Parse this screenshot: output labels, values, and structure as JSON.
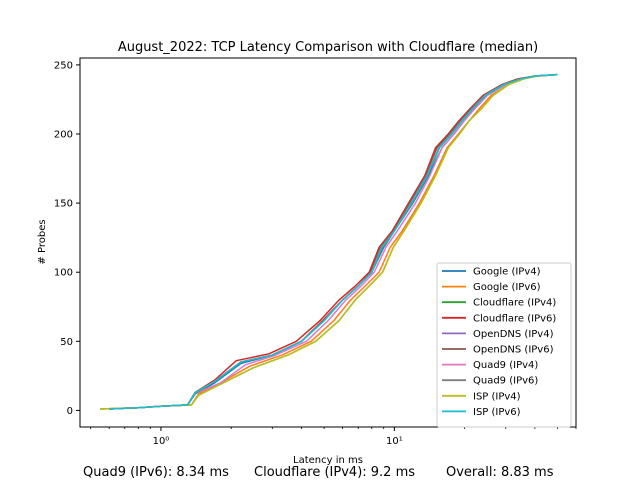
{
  "chart_data": {
    "type": "line",
    "title": "August_2022: TCP Latency Comparison with Cloudflare (median)",
    "xlabel": "Latency in ms",
    "ylabel": "# Probes",
    "xscale": "log",
    "xlim": [
      0.45,
      60
    ],
    "ylim": [
      -12,
      255
    ],
    "xticks": [
      {
        "value": 1,
        "label": "10⁰"
      },
      {
        "value": 10,
        "label": "10¹"
      }
    ],
    "yticks": [
      0,
      50,
      100,
      150,
      200,
      250
    ],
    "grid": false,
    "legend_position": "lower-right",
    "series": [
      {
        "name": "Google (IPv4)",
        "color": "#1f77b4",
        "points": [
          [
            0.6,
            1
          ],
          [
            0.8,
            2
          ],
          [
            1.0,
            3
          ],
          [
            1.3,
            4
          ],
          [
            1.4,
            12
          ],
          [
            1.7,
            20
          ],
          [
            2.2,
            34
          ],
          [
            3.0,
            40
          ],
          [
            4.0,
            50
          ],
          [
            5.0,
            65
          ],
          [
            6.0,
            80
          ],
          [
            7.0,
            90
          ],
          [
            8.0,
            100
          ],
          [
            9.0,
            118
          ],
          [
            10.0,
            130
          ],
          [
            12.0,
            150
          ],
          [
            14.0,
            170
          ],
          [
            16.0,
            190
          ],
          [
            18.0,
            200
          ],
          [
            20.0,
            210
          ],
          [
            22.0,
            218
          ],
          [
            25.0,
            228
          ],
          [
            30.0,
            236
          ],
          [
            35.0,
            240
          ],
          [
            40.0,
            242
          ],
          [
            50.0,
            243
          ]
        ]
      },
      {
        "name": "Google (IPv6)",
        "color": "#ff7f0e",
        "points": [
          [
            0.55,
            1
          ],
          [
            0.8,
            2
          ],
          [
            1.0,
            3
          ],
          [
            1.35,
            4
          ],
          [
            1.45,
            12
          ],
          [
            1.8,
            20
          ],
          [
            2.4,
            32
          ],
          [
            3.3,
            40
          ],
          [
            4.4,
            50
          ],
          [
            5.5,
            65
          ],
          [
            6.5,
            80
          ],
          [
            7.5,
            90
          ],
          [
            8.6,
            100
          ],
          [
            9.6,
            118
          ],
          [
            10.8,
            130
          ],
          [
            12.8,
            150
          ],
          [
            14.8,
            170
          ],
          [
            16.8,
            190
          ],
          [
            18.8,
            200
          ],
          [
            21.0,
            210
          ],
          [
            23.0,
            218
          ],
          [
            26.0,
            228
          ],
          [
            31.0,
            236
          ],
          [
            36.0,
            240
          ],
          [
            41.0,
            242
          ],
          [
            50.0,
            243
          ]
        ]
      },
      {
        "name": "Cloudflare (IPv4)",
        "color": "#2ca02c",
        "points": [
          [
            0.55,
            1
          ],
          [
            0.8,
            2
          ],
          [
            1.0,
            3
          ],
          [
            1.35,
            4
          ],
          [
            1.45,
            11
          ],
          [
            1.85,
            20
          ],
          [
            2.5,
            31
          ],
          [
            3.5,
            40
          ],
          [
            4.6,
            50
          ],
          [
            5.8,
            65
          ],
          [
            6.8,
            80
          ],
          [
            7.8,
            90
          ],
          [
            8.9,
            100
          ],
          [
            9.9,
            118
          ],
          [
            11.0,
            130
          ],
          [
            13.0,
            150
          ],
          [
            15.0,
            170
          ],
          [
            17.0,
            190
          ],
          [
            19.0,
            200
          ],
          [
            21.0,
            210
          ],
          [
            23.5,
            218
          ],
          [
            26.5,
            228
          ],
          [
            31.0,
            236
          ],
          [
            36.0,
            240
          ],
          [
            41.0,
            242
          ],
          [
            50.0,
            243
          ]
        ]
      },
      {
        "name": "Cloudflare (IPv6)",
        "color": "#d62728",
        "points": [
          [
            0.6,
            1
          ],
          [
            0.8,
            2
          ],
          [
            1.0,
            3
          ],
          [
            1.3,
            4
          ],
          [
            1.4,
            13
          ],
          [
            1.7,
            22
          ],
          [
            2.1,
            36
          ],
          [
            2.9,
            41
          ],
          [
            3.8,
            50
          ],
          [
            4.8,
            65
          ],
          [
            5.8,
            80
          ],
          [
            6.8,
            90
          ],
          [
            7.8,
            100
          ],
          [
            8.6,
            118
          ],
          [
            9.8,
            130
          ],
          [
            11.5,
            150
          ],
          [
            13.5,
            170
          ],
          [
            15.0,
            190
          ],
          [
            17.0,
            200
          ],
          [
            19.0,
            210
          ],
          [
            21.0,
            218
          ],
          [
            24.0,
            228
          ],
          [
            29.0,
            236
          ],
          [
            34.0,
            240
          ],
          [
            40.0,
            242
          ],
          [
            50.0,
            243
          ]
        ]
      },
      {
        "name": "OpenDNS (IPv4)",
        "color": "#9467bd",
        "points": [
          [
            0.6,
            1
          ],
          [
            0.8,
            2
          ],
          [
            1.0,
            3
          ],
          [
            1.3,
            4
          ],
          [
            1.4,
            12
          ],
          [
            1.7,
            21
          ],
          [
            2.2,
            35
          ],
          [
            3.0,
            40
          ],
          [
            4.0,
            50
          ],
          [
            5.0,
            66
          ],
          [
            6.0,
            80
          ],
          [
            7.0,
            90
          ],
          [
            8.0,
            100
          ],
          [
            8.8,
            118
          ],
          [
            10.0,
            130
          ],
          [
            11.8,
            150
          ],
          [
            13.8,
            170
          ],
          [
            15.5,
            190
          ],
          [
            17.5,
            200
          ],
          [
            19.5,
            210
          ],
          [
            21.5,
            218
          ],
          [
            24.5,
            228
          ],
          [
            29.5,
            236
          ],
          [
            35.0,
            240
          ],
          [
            40.0,
            242
          ],
          [
            50.0,
            243
          ]
        ]
      },
      {
        "name": "OpenDNS (IPv6)",
        "color": "#8c564b",
        "points": [
          [
            0.6,
            1
          ],
          [
            0.8,
            2
          ],
          [
            1.0,
            3
          ],
          [
            1.3,
            4
          ],
          [
            1.4,
            12
          ],
          [
            1.7,
            21
          ],
          [
            2.2,
            35
          ],
          [
            3.0,
            40
          ],
          [
            4.0,
            50
          ],
          [
            5.0,
            66
          ],
          [
            6.0,
            80
          ],
          [
            7.0,
            90
          ],
          [
            7.9,
            100
          ],
          [
            8.7,
            118
          ],
          [
            9.9,
            130
          ],
          [
            11.6,
            150
          ],
          [
            13.6,
            170
          ],
          [
            15.2,
            190
          ],
          [
            17.2,
            200
          ],
          [
            19.2,
            210
          ],
          [
            21.2,
            218
          ],
          [
            24.2,
            228
          ],
          [
            29.2,
            236
          ],
          [
            34.5,
            240
          ],
          [
            40.0,
            242
          ],
          [
            50.0,
            243
          ]
        ]
      },
      {
        "name": "Quad9 (IPv4)",
        "color": "#e377c2",
        "points": [
          [
            0.6,
            1
          ],
          [
            0.8,
            2
          ],
          [
            1.0,
            3
          ],
          [
            1.3,
            4
          ],
          [
            1.4,
            12
          ],
          [
            1.8,
            20
          ],
          [
            2.3,
            33
          ],
          [
            3.1,
            40
          ],
          [
            4.2,
            50
          ],
          [
            5.2,
            65
          ],
          [
            6.2,
            80
          ],
          [
            7.2,
            90
          ],
          [
            8.2,
            100
          ],
          [
            9.2,
            118
          ],
          [
            10.3,
            130
          ],
          [
            12.3,
            150
          ],
          [
            14.2,
            170
          ],
          [
            16.0,
            190
          ],
          [
            18.0,
            200
          ],
          [
            20.0,
            210
          ],
          [
            22.0,
            218
          ],
          [
            25.0,
            228
          ],
          [
            30.0,
            236
          ],
          [
            35.0,
            240
          ],
          [
            40.0,
            242
          ],
          [
            50.0,
            243
          ]
        ]
      },
      {
        "name": "Quad9 (IPv6)",
        "color": "#7f7f7f",
        "points": [
          [
            0.6,
            1
          ],
          [
            0.8,
            2
          ],
          [
            1.0,
            3
          ],
          [
            1.3,
            4
          ],
          [
            1.4,
            12
          ],
          [
            1.7,
            21
          ],
          [
            2.2,
            35
          ],
          [
            3.0,
            40
          ],
          [
            4.0,
            50
          ],
          [
            5.0,
            65
          ],
          [
            6.0,
            80
          ],
          [
            7.0,
            90
          ],
          [
            8.0,
            100
          ],
          [
            8.9,
            118
          ],
          [
            10.0,
            130
          ],
          [
            11.9,
            150
          ],
          [
            13.9,
            170
          ],
          [
            15.6,
            190
          ],
          [
            17.6,
            200
          ],
          [
            19.6,
            210
          ],
          [
            21.6,
            218
          ],
          [
            24.6,
            228
          ],
          [
            29.6,
            236
          ],
          [
            35.0,
            240
          ],
          [
            40.0,
            242
          ],
          [
            50.0,
            243
          ]
        ]
      },
      {
        "name": "ISP (IPv4)",
        "color": "#bcbd22",
        "points": [
          [
            0.55,
            1
          ],
          [
            0.8,
            2
          ],
          [
            1.0,
            3
          ],
          [
            1.35,
            4
          ],
          [
            1.45,
            11
          ],
          [
            1.85,
            20
          ],
          [
            2.5,
            31
          ],
          [
            3.5,
            40
          ],
          [
            4.6,
            50
          ],
          [
            5.8,
            65
          ],
          [
            6.8,
            80
          ],
          [
            7.8,
            90
          ],
          [
            8.9,
            100
          ],
          [
            9.9,
            118
          ],
          [
            11.0,
            130
          ],
          [
            13.0,
            150
          ],
          [
            15.0,
            170
          ],
          [
            17.0,
            190
          ],
          [
            19.0,
            200
          ],
          [
            21.0,
            210
          ],
          [
            23.5,
            218
          ],
          [
            26.5,
            228
          ],
          [
            31.0,
            236
          ],
          [
            36.0,
            240
          ],
          [
            41.0,
            242
          ],
          [
            50.0,
            243
          ]
        ]
      },
      {
        "name": "ISP (IPv6)",
        "color": "#17becf",
        "points": [
          [
            0.6,
            1
          ],
          [
            0.8,
            2
          ],
          [
            1.0,
            3
          ],
          [
            1.3,
            4
          ],
          [
            1.4,
            13
          ],
          [
            1.7,
            21
          ],
          [
            2.2,
            35
          ],
          [
            3.0,
            40
          ],
          [
            4.0,
            50
          ],
          [
            5.0,
            65
          ],
          [
            6.0,
            80
          ],
          [
            7.0,
            90
          ],
          [
            8.0,
            100
          ],
          [
            8.8,
            118
          ],
          [
            10.0,
            130
          ],
          [
            11.8,
            150
          ],
          [
            13.8,
            170
          ],
          [
            15.5,
            190
          ],
          [
            17.5,
            200
          ],
          [
            19.5,
            210
          ],
          [
            21.5,
            218
          ],
          [
            24.5,
            228
          ],
          [
            29.5,
            236
          ],
          [
            35.0,
            240
          ],
          [
            40.0,
            242
          ],
          [
            50.0,
            243
          ]
        ]
      }
    ]
  },
  "footer": {
    "quad9": "Quad9 (IPv6): 8.34 ms",
    "cloudflare": "Cloudflare (IPv4): 9.2 ms",
    "overall": "Overall: 8.83 ms"
  }
}
